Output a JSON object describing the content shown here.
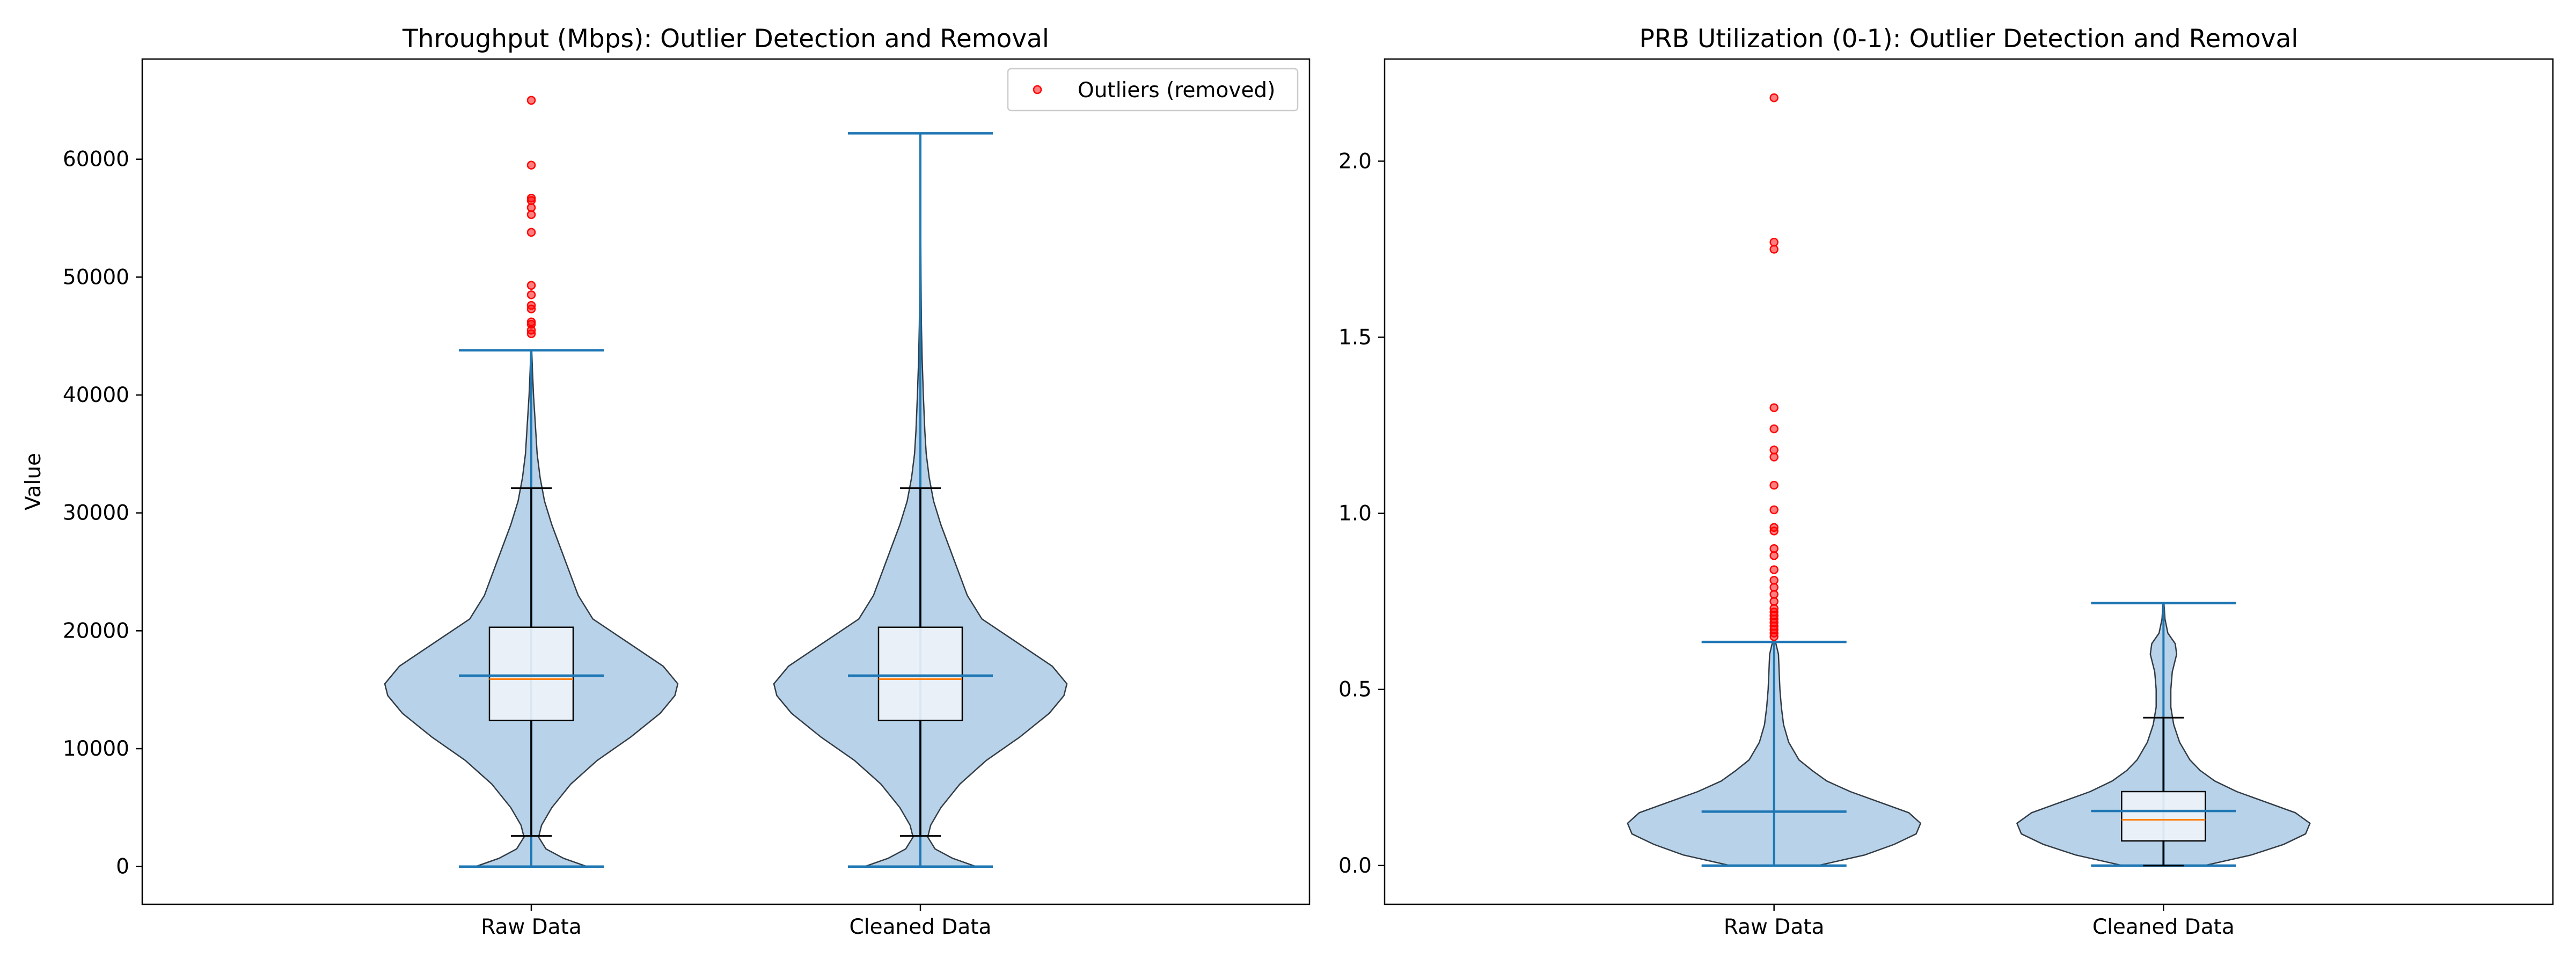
{
  "chart_data": [
    {
      "type": "violin",
      "title": "Throughput (Mbps): Outlier Detection and Removal",
      "ylabel": "Value",
      "xlabel": "",
      "categories": [
        "Raw Data",
        "Cleaned Data"
      ],
      "ylim": [
        -3200,
        68500
      ],
      "yticks": [
        0,
        10000,
        20000,
        30000,
        40000,
        50000,
        60000
      ],
      "ytick_labels": [
        "0",
        "10000",
        "20000",
        "30000",
        "40000",
        "50000",
        "60000"
      ],
      "legend": {
        "placement": "top-right",
        "entries": [
          "Outliers (removed)"
        ]
      },
      "series": [
        {
          "category": "Raw Data",
          "violin": {
            "min": 0,
            "max": 43800,
            "mean": 16200
          },
          "box": {
            "whisker_low": 2600,
            "q1": 12400,
            "median": 15900,
            "q3": 20300,
            "whisker_high": 32100
          },
          "density": [
            [
              0,
              0.38
            ],
            [
              700,
              0.22
            ],
            [
              1500,
              0.1
            ],
            [
              2500,
              0.05
            ],
            [
              3500,
              0.07
            ],
            [
              5000,
              0.14
            ],
            [
              7000,
              0.27
            ],
            [
              9000,
              0.45
            ],
            [
              11000,
              0.68
            ],
            [
              13000,
              0.88
            ],
            [
              14500,
              0.98
            ],
            [
              15500,
              1.0
            ],
            [
              17000,
              0.9
            ],
            [
              19000,
              0.66
            ],
            [
              21000,
              0.42
            ],
            [
              23000,
              0.32
            ],
            [
              25000,
              0.26
            ],
            [
              27000,
              0.2
            ],
            [
              29000,
              0.14
            ],
            [
              31000,
              0.09
            ],
            [
              33000,
              0.06
            ],
            [
              35000,
              0.04
            ],
            [
              37000,
              0.03
            ],
            [
              40000,
              0.015
            ],
            [
              42000,
              0.008
            ],
            [
              43800,
              0.003
            ]
          ],
          "outliers": [
            65000,
            59500,
            56700,
            56500,
            55900,
            55300,
            53800,
            49300,
            48500,
            47600,
            47300,
            46200,
            46000,
            45500,
            45200
          ]
        },
        {
          "category": "Cleaned Data",
          "violin": {
            "min": 0,
            "max": 62200,
            "mean": 16200
          },
          "box": {
            "whisker_low": 2600,
            "q1": 12400,
            "median": 15900,
            "q3": 20300,
            "whisker_high": 32100
          },
          "density": [
            [
              0,
              0.38
            ],
            [
              700,
              0.22
            ],
            [
              1500,
              0.1
            ],
            [
              2500,
              0.05
            ],
            [
              3500,
              0.07
            ],
            [
              5000,
              0.14
            ],
            [
              7000,
              0.27
            ],
            [
              9000,
              0.45
            ],
            [
              11000,
              0.68
            ],
            [
              13000,
              0.88
            ],
            [
              14500,
              0.98
            ],
            [
              15500,
              1.0
            ],
            [
              17000,
              0.9
            ],
            [
              19000,
              0.66
            ],
            [
              21000,
              0.42
            ],
            [
              23000,
              0.32
            ],
            [
              25000,
              0.26
            ],
            [
              27000,
              0.2
            ],
            [
              29000,
              0.14
            ],
            [
              31000,
              0.09
            ],
            [
              33000,
              0.06
            ],
            [
              35000,
              0.04
            ],
            [
              37000,
              0.03
            ],
            [
              40000,
              0.02
            ],
            [
              43000,
              0.012
            ],
            [
              46000,
              0.007
            ],
            [
              50000,
              0.004
            ],
            [
              55000,
              0.002
            ],
            [
              62200,
              0.001
            ]
          ],
          "outliers": []
        }
      ]
    },
    {
      "type": "violin",
      "title": "PRB Utilization (0-1): Outlier Detection and Removal",
      "ylabel": "",
      "xlabel": "",
      "categories": [
        "Raw Data",
        "Cleaned Data"
      ],
      "ylim": [
        -0.11,
        2.29
      ],
      "yticks": [
        0,
        0.5,
        1.0,
        1.5,
        2.0
      ],
      "ytick_labels": [
        "0.0",
        "0.5",
        "1.0",
        "1.5",
        "2.0"
      ],
      "series": [
        {
          "category": "Raw Data",
          "violin": {
            "min": 0,
            "max": 0.635,
            "mean": 0.153
          },
          "box": null,
          "density": [
            [
              0,
              0.3
            ],
            [
              0.03,
              0.62
            ],
            [
              0.06,
              0.82
            ],
            [
              0.09,
              0.97
            ],
            [
              0.12,
              1.0
            ],
            [
              0.15,
              0.92
            ],
            [
              0.18,
              0.72
            ],
            [
              0.21,
              0.52
            ],
            [
              0.24,
              0.36
            ],
            [
              0.27,
              0.26
            ],
            [
              0.3,
              0.17
            ],
            [
              0.35,
              0.1
            ],
            [
              0.4,
              0.065
            ],
            [
              0.45,
              0.05
            ],
            [
              0.5,
              0.04
            ],
            [
              0.55,
              0.035
            ],
            [
              0.6,
              0.03
            ],
            [
              0.635,
              0.01
            ]
          ],
          "outliers": [
            2.18,
            1.77,
            1.75,
            1.3,
            1.24,
            1.18,
            1.16,
            1.08,
            1.01,
            0.96,
            0.95,
            0.9,
            0.88,
            0.84,
            0.81,
            0.79,
            0.77,
            0.75,
            0.73,
            0.72,
            0.71,
            0.7,
            0.69,
            0.68,
            0.67,
            0.66,
            0.65
          ]
        },
        {
          "category": "Cleaned Data",
          "violin": {
            "min": 0,
            "max": 0.745,
            "mean": 0.155
          },
          "box": {
            "whisker_low": 0.0,
            "q1": 0.07,
            "median": 0.13,
            "q3": 0.21,
            "whisker_high": 0.42
          },
          "density": [
            [
              0,
              0.28
            ],
            [
              0.03,
              0.6
            ],
            [
              0.06,
              0.82
            ],
            [
              0.09,
              0.97
            ],
            [
              0.12,
              1.0
            ],
            [
              0.15,
              0.9
            ],
            [
              0.18,
              0.7
            ],
            [
              0.21,
              0.5
            ],
            [
              0.24,
              0.35
            ],
            [
              0.27,
              0.25
            ],
            [
              0.3,
              0.18
            ],
            [
              0.35,
              0.11
            ],
            [
              0.4,
              0.07
            ],
            [
              0.45,
              0.05
            ],
            [
              0.5,
              0.05
            ],
            [
              0.55,
              0.06
            ],
            [
              0.6,
              0.09
            ],
            [
              0.63,
              0.08
            ],
            [
              0.66,
              0.03
            ],
            [
              0.7,
              0.01
            ],
            [
              0.745,
              0.003
            ]
          ],
          "outliers": []
        }
      ]
    }
  ]
}
